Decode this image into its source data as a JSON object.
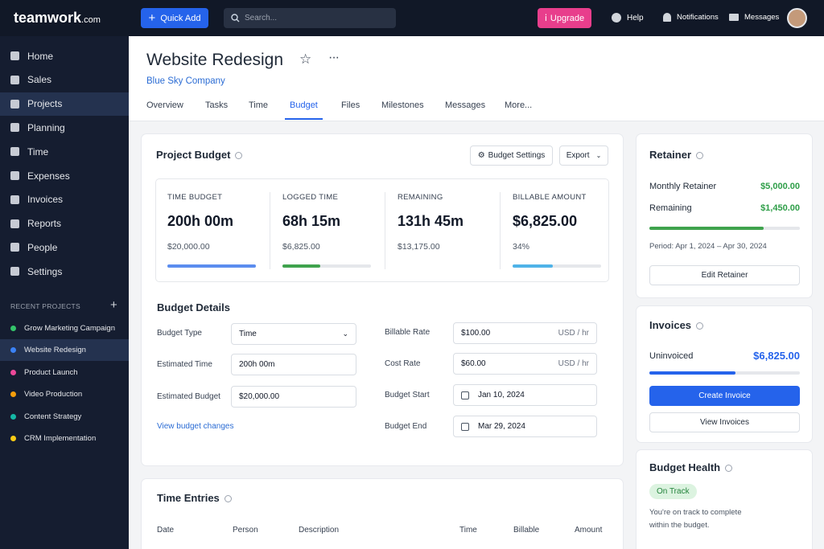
{
  "topbar": {
    "logo": "teamwork",
    "logo_suffix": ".com",
    "quick_add": "Quick Add",
    "search": "Search...",
    "upgrade": "Upgrade",
    "help": "Help",
    "notifications": "Notifications",
    "messages": "Messages"
  },
  "sidebar": {
    "nav": [
      "Home",
      "Sales",
      "Projects",
      "Planning",
      "Time",
      "Expenses",
      "Invoices",
      "Reports",
      "People",
      "Settings"
    ],
    "recent_title": "RECENT PROJECTS",
    "recent": [
      "Grow Marketing Campaign",
      "Website Redesign",
      "Product Launch",
      "Video Production",
      "Content Strategy",
      "CRM Implementation"
    ]
  },
  "header": {
    "title": "Website Redesign",
    "company": "Blue Sky Company",
    "tabs": [
      "Overview",
      "Tasks",
      "Time",
      "Budget",
      "Files",
      "Milestones",
      "Messages",
      "More..."
    ]
  },
  "project_budget": {
    "title": "Project Budget",
    "settings": "Budget Settings",
    "export": "Export",
    "stats": [
      {
        "label": "TIME BUDGET",
        "value": "200h 00m",
        "sub": "$20,000.00"
      },
      {
        "label": "LOGGED TIME",
        "value": "68h 15m",
        "sub": "$6,825.00"
      },
      {
        "label": "REMAINING",
        "value": "131h 45m",
        "sub": "$13,175.00"
      },
      {
        "label": "BILLABLE AMOUNT",
        "value": "$6,825.00",
        "sub": "34%"
      }
    ]
  },
  "budget_details": {
    "title": "Budget Details",
    "budget_type": {
      "label": "Budget Type",
      "value": "Time"
    },
    "estimated_time": {
      "label": "Estimated Time",
      "value": "200h 00m"
    },
    "estimated_budget": {
      "label": "Estimated Budget",
      "value": "$20,000.00"
    },
    "billable_rate": {
      "label": "Billable Rate",
      "value": "$100.00",
      "unit": "USD / hr"
    },
    "cost_rate": {
      "label": "Cost Rate",
      "value": "$60.00",
      "unit": "USD / hr"
    },
    "budget_start": {
      "label": "Budget Start",
      "value": "Jan 10, 2024"
    },
    "budget_end": {
      "label": "Budget End",
      "value": "Mar 29, 2024"
    },
    "link": "View budget changes"
  },
  "time_entries": {
    "title": "Time Entries",
    "columns": [
      "Date",
      "Person",
      "Description",
      "Time",
      "Billable",
      "Amount"
    ]
  },
  "retainer": {
    "title": "Retainer",
    "monthly_label": "Monthly Retainer",
    "monthly_value": "$5,000.00",
    "remaining_label": "Remaining",
    "remaining_value": "$1,450.00",
    "period": "Period: Apr 1, 2024 – Apr 30, 2024",
    "button": "Edit Retainer"
  },
  "invoices": {
    "title": "Invoices",
    "uninvoiced_label": "Uninvoiced",
    "uninvoiced_value": "$6,825.00",
    "create": "Create Invoice",
    "view": "View Invoices"
  },
  "budget_health": {
    "title": "Budget Health",
    "status": "On Track",
    "note": "You're on track to complete within the budget."
  }
}
